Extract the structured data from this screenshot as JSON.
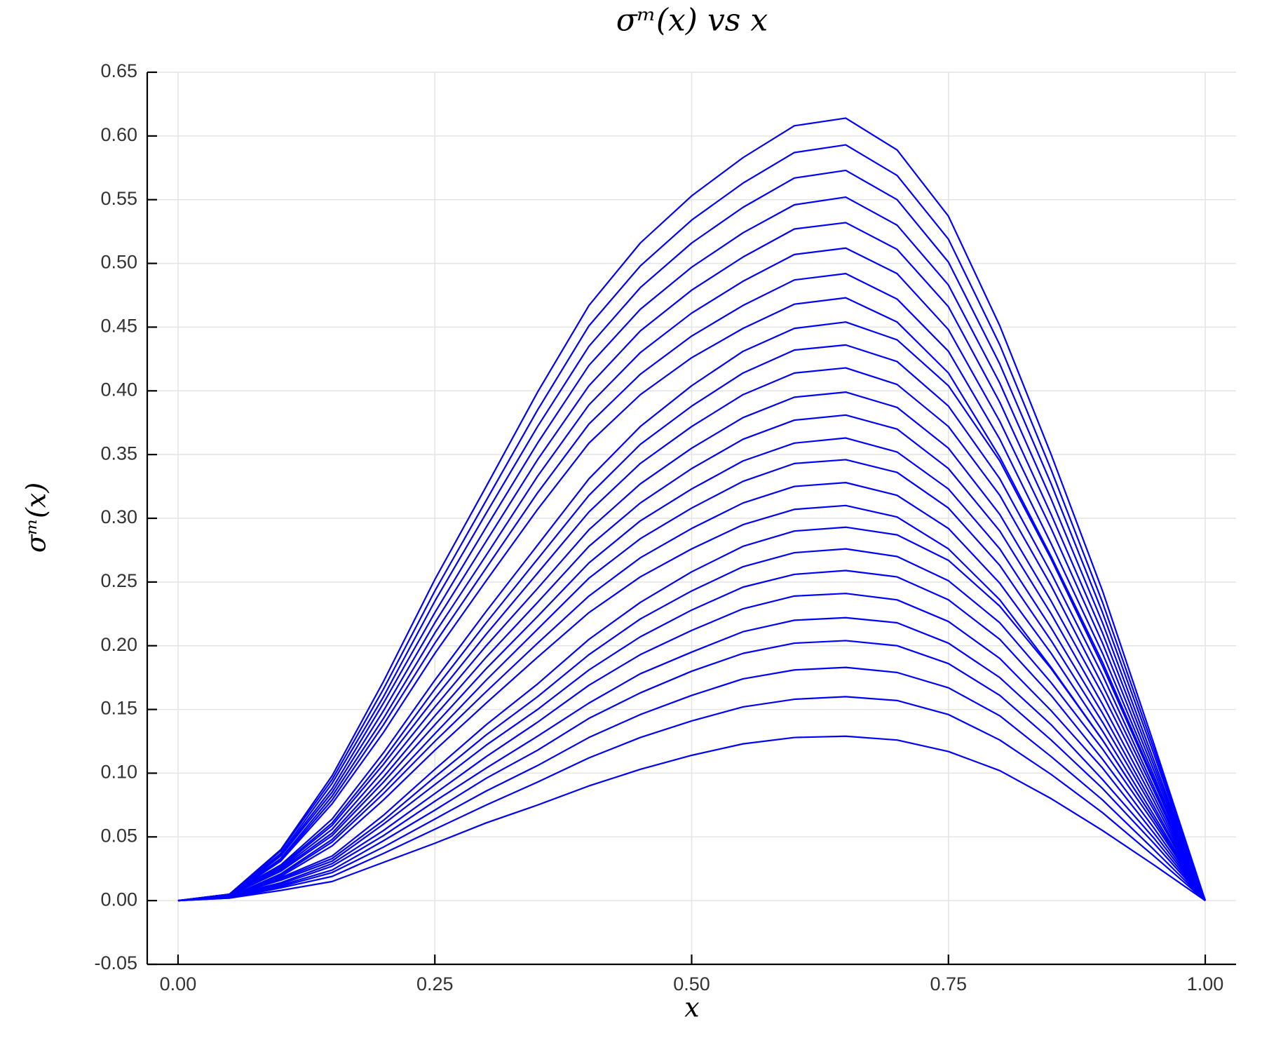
{
  "chart_data": {
    "type": "line",
    "title": "σᵐ(x) vs x",
    "x_label": "x",
    "y_label": "σᵐ(x)",
    "x": [
      0,
      0.05,
      0.1,
      0.15,
      0.2,
      0.25,
      0.3,
      0.35,
      0.4,
      0.45,
      0.5,
      0.55,
      0.6,
      0.65,
      0.7,
      0.75,
      0.8,
      0.85,
      0.9,
      0.95,
      1
    ],
    "series": [
      {
        "color": "#0000ff",
        "values": [
          0,
          0.002,
          0.008,
          0.015,
          0.03,
          0.045,
          0.061,
          0.075,
          0.09,
          0.103,
          0.114,
          0.123,
          0.128,
          0.129,
          0.126,
          0.117,
          0.102,
          0.08,
          0.055,
          0.028,
          0
        ]
      },
      {
        "color": "#0000ff",
        "values": [
          0,
          0.002,
          0.01,
          0.019,
          0.037,
          0.056,
          0.075,
          0.093,
          0.112,
          0.128,
          0.141,
          0.152,
          0.158,
          0.16,
          0.157,
          0.146,
          0.126,
          0.099,
          0.069,
          0.035,
          0
        ]
      },
      {
        "color": "#0000ff",
        "values": [
          0,
          0.003,
          0.011,
          0.022,
          0.042,
          0.064,
          0.086,
          0.106,
          0.128,
          0.146,
          0.161,
          0.174,
          0.181,
          0.183,
          0.179,
          0.167,
          0.145,
          0.113,
          0.079,
          0.04,
          0
        ]
      },
      {
        "color": "#0000ff",
        "values": [
          0,
          0.003,
          0.012,
          0.024,
          0.047,
          0.071,
          0.096,
          0.118,
          0.143,
          0.163,
          0.18,
          0.194,
          0.202,
          0.204,
          0.2,
          0.186,
          0.161,
          0.126,
          0.088,
          0.045,
          0
        ]
      },
      {
        "color": "#0000ff",
        "values": [
          0,
          0.003,
          0.013,
          0.027,
          0.051,
          0.078,
          0.104,
          0.129,
          0.155,
          0.178,
          0.195,
          0.211,
          0.22,
          0.222,
          0.218,
          0.202,
          0.175,
          0.138,
          0.095,
          0.049,
          0
        ]
      },
      {
        "color": "#0000ff",
        "values": [
          0,
          0.004,
          0.014,
          0.029,
          0.055,
          0.084,
          0.113,
          0.14,
          0.169,
          0.193,
          0.212,
          0.229,
          0.239,
          0.241,
          0.236,
          0.219,
          0.19,
          0.149,
          0.104,
          0.053,
          0
        ]
      },
      {
        "color": "#0000ff",
        "values": [
          0,
          0.004,
          0.016,
          0.031,
          0.06,
          0.091,
          0.122,
          0.15,
          0.181,
          0.207,
          0.228,
          0.246,
          0.256,
          0.259,
          0.254,
          0.236,
          0.205,
          0.161,
          0.111,
          0.057,
          0
        ]
      },
      {
        "color": "#0000ff",
        "values": [
          0,
          0.004,
          0.017,
          0.033,
          0.063,
          0.097,
          0.13,
          0.16,
          0.193,
          0.221,
          0.243,
          0.262,
          0.273,
          0.276,
          0.27,
          0.251,
          0.218,
          0.171,
          0.119,
          0.061,
          0
        ]
      },
      {
        "color": "#0000ff",
        "values": [
          0,
          0.004,
          0.018,
          0.035,
          0.067,
          0.103,
          0.138,
          0.17,
          0.205,
          0.234,
          0.258,
          0.278,
          0.29,
          0.293,
          0.287,
          0.267,
          0.231,
          0.182,
          0.126,
          0.064,
          0
        ]
      },
      {
        "color": "#0000ff",
        "values": [
          0,
          0.003,
          0.019,
          0.043,
          0.079,
          0.118,
          0.155,
          0.191,
          0.226,
          0.254,
          0.276,
          0.295,
          0.307,
          0.31,
          0.301,
          0.276,
          0.236,
          0.183,
          0.126,
          0.064,
          0
        ]
      },
      {
        "color": "#0000ff",
        "values": [
          0,
          0.003,
          0.02,
          0.046,
          0.084,
          0.125,
          0.164,
          0.202,
          0.239,
          0.269,
          0.292,
          0.312,
          0.325,
          0.328,
          0.318,
          0.292,
          0.249,
          0.194,
          0.133,
          0.067,
          0
        ]
      },
      {
        "color": "#0000ff",
        "values": [
          0,
          0.003,
          0.021,
          0.048,
          0.088,
          0.131,
          0.173,
          0.213,
          0.253,
          0.284,
          0.308,
          0.329,
          0.343,
          0.346,
          0.336,
          0.308,
          0.263,
          0.204,
          0.14,
          0.071,
          0
        ]
      },
      {
        "color": "#0000ff",
        "values": [
          0,
          0.004,
          0.023,
          0.051,
          0.093,
          0.138,
          0.182,
          0.223,
          0.265,
          0.298,
          0.323,
          0.345,
          0.359,
          0.363,
          0.352,
          0.323,
          0.276,
          0.214,
          0.147,
          0.074,
          0
        ]
      },
      {
        "color": "#0000ff",
        "values": [
          0,
          0.004,
          0.024,
          0.053,
          0.097,
          0.145,
          0.191,
          0.234,
          0.278,
          0.312,
          0.339,
          0.362,
          0.377,
          0.381,
          0.37,
          0.339,
          0.29,
          0.225,
          0.154,
          0.078,
          0
        ]
      },
      {
        "color": "#0000ff",
        "values": [
          0,
          0.004,
          0.025,
          0.056,
          0.102,
          0.152,
          0.2,
          0.245,
          0.291,
          0.327,
          0.355,
          0.379,
          0.395,
          0.399,
          0.387,
          0.355,
          0.303,
          0.235,
          0.162,
          0.082,
          0
        ]
      },
      {
        "color": "#0000ff",
        "values": [
          0,
          0.004,
          0.026,
          0.059,
          0.107,
          0.159,
          0.209,
          0.257,
          0.305,
          0.343,
          0.372,
          0.397,
          0.414,
          0.418,
          0.405,
          0.372,
          0.318,
          0.247,
          0.169,
          0.086,
          0
        ]
      },
      {
        "color": "#0000ff",
        "values": [
          0,
          0.004,
          0.027,
          0.061,
          0.111,
          0.166,
          0.218,
          0.268,
          0.318,
          0.358,
          0.388,
          0.414,
          0.432,
          0.436,
          0.423,
          0.388,
          0.331,
          0.257,
          0.177,
          0.089,
          0
        ]
      },
      {
        "color": "#0000ff",
        "values": [
          0,
          0.005,
          0.028,
          0.064,
          0.116,
          0.173,
          0.227,
          0.279,
          0.331,
          0.372,
          0.404,
          0.431,
          0.449,
          0.454,
          0.44,
          0.404,
          0.345,
          0.268,
          0.184,
          0.093,
          0
        ]
      },
      {
        "color": "#0000ff",
        "values": [
          0,
          0.004,
          0.031,
          0.076,
          0.132,
          0.194,
          0.251,
          0.307,
          0.359,
          0.397,
          0.426,
          0.449,
          0.468,
          0.473,
          0.454,
          0.414,
          0.348,
          0.27,
          0.187,
          0.095,
          0
        ]
      },
      {
        "color": "#0000ff",
        "values": [
          0,
          0.004,
          0.032,
          0.079,
          0.138,
          0.202,
          0.261,
          0.32,
          0.374,
          0.413,
          0.443,
          0.467,
          0.487,
          0.492,
          0.472,
          0.431,
          0.362,
          0.28,
          0.194,
          0.098,
          0
        ]
      },
      {
        "color": "#0000ff",
        "values": [
          0,
          0.004,
          0.033,
          0.082,
          0.143,
          0.21,
          0.271,
          0.333,
          0.389,
          0.43,
          0.461,
          0.486,
          0.507,
          0.512,
          0.492,
          0.448,
          0.376,
          0.292,
          0.202,
          0.102,
          0
        ]
      },
      {
        "color": "#0000ff",
        "values": [
          0,
          0.004,
          0.035,
          0.085,
          0.149,
          0.218,
          0.282,
          0.346,
          0.404,
          0.447,
          0.479,
          0.505,
          0.527,
          0.532,
          0.511,
          0.466,
          0.391,
          0.303,
          0.21,
          0.106,
          0
        ]
      },
      {
        "color": "#0000ff",
        "values": [
          0,
          0.004,
          0.036,
          0.088,
          0.155,
          0.226,
          0.293,
          0.359,
          0.42,
          0.464,
          0.497,
          0.524,
          0.546,
          0.552,
          0.53,
          0.483,
          0.406,
          0.315,
          0.218,
          0.11,
          0
        ]
      },
      {
        "color": "#0000ff",
        "values": [
          0,
          0.005,
          0.037,
          0.092,
          0.16,
          0.235,
          0.304,
          0.372,
          0.435,
          0.481,
          0.516,
          0.544,
          0.567,
          0.573,
          0.55,
          0.501,
          0.421,
          0.327,
          0.226,
          0.115,
          0
        ]
      },
      {
        "color": "#0000ff",
        "values": [
          0,
          0.005,
          0.039,
          0.095,
          0.166,
          0.243,
          0.314,
          0.385,
          0.451,
          0.498,
          0.534,
          0.563,
          0.587,
          0.593,
          0.569,
          0.519,
          0.436,
          0.338,
          0.234,
          0.119,
          0
        ]
      },
      {
        "color": "#0000ff",
        "values": [
          0,
          0.005,
          0.04,
          0.098,
          0.172,
          0.252,
          0.325,
          0.399,
          0.467,
          0.516,
          0.553,
          0.583,
          0.608,
          0.614,
          0.589,
          0.537,
          0.451,
          0.35,
          0.243,
          0.123,
          0
        ]
      }
    ],
    "xlim": [
      -0.03,
      1.03
    ],
    "ylim": [
      -0.05,
      0.65
    ],
    "xticks": [
      {
        "value": 0,
        "label": "0.00"
      },
      {
        "value": 0.25,
        "label": "0.25"
      },
      {
        "value": 0.5,
        "label": "0.50"
      },
      {
        "value": 0.75,
        "label": "0.75"
      },
      {
        "value": 1,
        "label": "1.00"
      }
    ],
    "yticks": [
      {
        "value": -0.05,
        "label": "-0.05"
      },
      {
        "value": 0,
        "label": "0.00"
      },
      {
        "value": 0.05,
        "label": "0.05"
      },
      {
        "value": 0.1,
        "label": "0.10"
      },
      {
        "value": 0.15,
        "label": "0.15"
      },
      {
        "value": 0.2,
        "label": "0.20"
      },
      {
        "value": 0.25,
        "label": "0.25"
      },
      {
        "value": 0.3,
        "label": "0.30"
      },
      {
        "value": 0.35,
        "label": "0.35"
      },
      {
        "value": 0.4,
        "label": "0.40"
      },
      {
        "value": 0.45,
        "label": "0.45"
      },
      {
        "value": 0.5,
        "label": "0.50"
      },
      {
        "value": 0.55,
        "label": "0.55"
      },
      {
        "value": 0.6,
        "label": "0.60"
      },
      {
        "value": 0.65,
        "label": "0.65"
      }
    ],
    "grid": true
  }
}
